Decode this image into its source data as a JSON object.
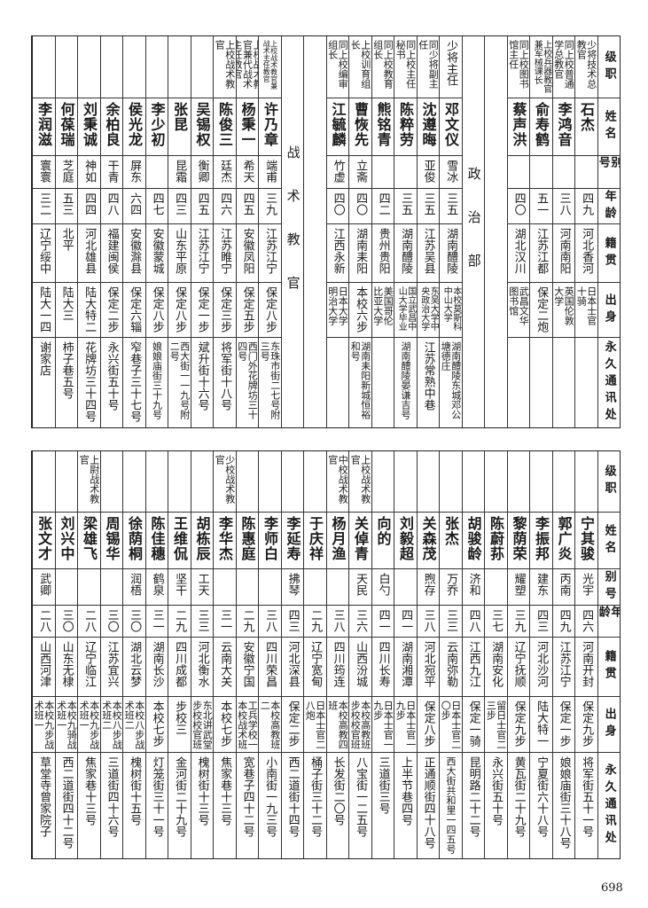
{
  "header_labels": [
    "级职",
    "姓名",
    "别号",
    "年龄",
    "籍贯",
    "出身",
    "永久通讯处"
  ],
  "top_table": {
    "columns": [
      {
        "type": "person",
        "title": "少将技术总教官",
        "name": "石杰",
        "alias": "",
        "age": "四九",
        "native": "河北香河",
        "education": "日本士官十骑",
        "address": ""
      },
      {
        "type": "person",
        "title": "同上校普通学总教官",
        "name": "李鸿音",
        "alias": "",
        "age": "三八",
        "native": "河南南阳",
        "education": "英国伦敦大学",
        "address": ""
      },
      {
        "type": "person",
        "title": "上校兵器教官兼军械课长",
        "name": "俞寿鹤",
        "alias": "",
        "age": "五一",
        "native": "江苏江都",
        "education": "保定二炮",
        "address": ""
      },
      {
        "type": "person",
        "title": "同上校图书馆主任",
        "name": "蔡声洪",
        "alias": "",
        "age": "四〇",
        "native": "湖北汉川",
        "education": "武昌文华图书馆",
        "address": ""
      },
      {
        "type": "blank"
      },
      {
        "type": "label",
        "text": "政治部"
      },
      {
        "type": "person",
        "title": "少将主任",
        "name": "邓文仪",
        "alias": "雪冰",
        "age": "三五",
        "native": "湖南醴陵",
        "education": "本校莫斯科中山大学",
        "address": "湖南醴陵东城邓公塘德庄"
      },
      {
        "type": "person",
        "title": "同少将副主任",
        "name": "沈遵晦",
        "alias": "亚俊",
        "age": "三五",
        "native": "江苏吴县",
        "education": "东吴大学中央政治大学",
        "address": "江苏常熟中巷"
      },
      {
        "type": "person",
        "title": "同上校主任秘书",
        "name": "陈粹劳",
        "alias": "",
        "age": "三五",
        "native": "湖南醴陵",
        "education": "国立武昌中山大学毕业",
        "address": "湖南醴陵晏谦吉号"
      },
      {
        "type": "person",
        "title": "同上校教育组长",
        "name": "熊铭青",
        "alias": "",
        "age": "四二",
        "native": "贵州贵阳",
        "education": "美国哥伦比亚大学",
        "address": ""
      },
      {
        "type": "person",
        "title": "上校训育组长",
        "name": "曹恢先",
        "alias": "立斋",
        "age": "四〇",
        "native": "湖南耒阳",
        "education": "本校六步",
        "address": "湖南耒阳新城恒裕和号"
      },
      {
        "type": "person",
        "title": "同上校编审组长",
        "name": "江毓麟",
        "alias": "竹虚",
        "age": "四〇",
        "native": "江西永新",
        "education": "日本大学明治大学",
        "address": ""
      },
      {
        "type": "blank"
      },
      {
        "type": "label",
        "text": "战术教官"
      },
      {
        "type": "person",
        "title": "上校战术教官兼战术主任教官",
        "name": "许乃章",
        "alias": "端甫",
        "age": "三九",
        "native": "江苏江宁",
        "education": "保定八步",
        "address": "东珠市街二七号附三号"
      },
      {
        "type": "person",
        "title": "上校战术教官兼代战术主任教官",
        "name": "杨秉一",
        "alias": "希天",
        "age": "四五",
        "native": "安徽凤阳",
        "education": "保定五步",
        "address": "西门外花牌坊三十四号"
      },
      {
        "type": "person",
        "title": "上校战术教官",
        "name": "陈俊三",
        "alias": "廷杰",
        "age": "四六",
        "native": "江苏睢宁",
        "education": "保定三步",
        "address": "将军街十八号"
      },
      {
        "type": "person",
        "title": "",
        "name": "吴锡权",
        "alias": "衡卿",
        "age": "四五",
        "native": "江苏江宁",
        "education": "保定一步",
        "address": "斌升街十六号"
      },
      {
        "type": "person",
        "title": "",
        "name": "张昆",
        "alias": "昆霜",
        "age": "四三",
        "native": "山东平原",
        "education": "保定八步",
        "address": "西大街一一九号附二号"
      },
      {
        "type": "person",
        "title": "",
        "name": "李少初",
        "alias": "",
        "age": "四七",
        "native": "安徽蒙城",
        "education": "保定八步",
        "address": "娘娘庙街三十九号"
      },
      {
        "type": "person",
        "title": "",
        "name": "侯光龙",
        "alias": "屏东",
        "age": "六四",
        "native": "安徽滁县",
        "education": "保定六辎",
        "address": "窄巷子三十七号"
      },
      {
        "type": "person",
        "title": "",
        "name": "余柏良",
        "alias": "干青",
        "age": "四八",
        "native": "福建闽侯",
        "education": "保定二步",
        "address": "永兴街五十号"
      },
      {
        "type": "person",
        "title": "",
        "name": "刘秉诚",
        "alias": "神如",
        "age": "四四",
        "native": "河北雄县",
        "education": "陆大特二",
        "address": "花牌坊三十四号"
      },
      {
        "type": "person",
        "title": "",
        "name": "何葆瑞",
        "alias": "芝庭",
        "age": "五三",
        "native": "北平",
        "education": "陆大三",
        "address": "柿子巷五号"
      },
      {
        "type": "person",
        "title": "",
        "name": "李润滋",
        "alias": "寰寰",
        "age": "三二",
        "native": "辽宁绥中",
        "education": "陆大一四",
        "address": "谢家店"
      }
    ]
  },
  "bottom_table": {
    "columns": [
      {
        "type": "person",
        "title": "",
        "name": "宁其骏",
        "alias": "光宇",
        "age": "四六",
        "native": "河南开封",
        "education": "保定九步",
        "address": "将军街五十一号"
      },
      {
        "type": "person",
        "title": "",
        "name": "郭广炎",
        "alias": "丙南",
        "age": "四九",
        "native": "江苏江宁",
        "education": "保定一步",
        "address": "娘娘庙街三十八号"
      },
      {
        "type": "person",
        "title": "",
        "name": "李振邦",
        "alias": "建东",
        "age": "四三",
        "native": "河北沙河",
        "education": "陆大特一",
        "address": "宁夏街六十八号"
      },
      {
        "type": "person",
        "title": "",
        "name": "黎荫荣",
        "alias": "耀塑",
        "age": "三九",
        "native": "辽宁抚顺",
        "education": "保定九步",
        "address": "黄瓦街二十九号"
      },
      {
        "type": "person",
        "title": "",
        "name": "陈蔚荪",
        "alias": "",
        "age": "三七",
        "native": "湖南安化",
        "education": "留日士官二三步",
        "address": "永兴街五十号"
      },
      {
        "type": "person",
        "title": "",
        "name": "胡骏龄",
        "alias": "济和",
        "age": "四八",
        "native": "江西九江",
        "education": "保定一骑",
        "address": "昆明路二十二号"
      },
      {
        "type": "person",
        "title": "",
        "name": "张杰",
        "alias": "万乔",
        "age": "三三",
        "native": "云南弥勒",
        "education": "日本士官二〇步",
        "address": "西大街共和里一四五号"
      },
      {
        "type": "person",
        "title": "",
        "name": "关森茂",
        "alias": "煦存",
        "age": "三八",
        "native": "河北宛平",
        "education": "保定八步",
        "address": "正通顺街四十八号"
      },
      {
        "type": "person",
        "title": "",
        "name": "刘毅超",
        "alias": "",
        "age": "四一",
        "native": "湖南湘潭",
        "education": "日本士官一九步",
        "address": "上半节巷四号"
      },
      {
        "type": "person",
        "title": "",
        "name": "向的",
        "alias": "白勺",
        "age": "四一",
        "native": "四川长寿",
        "education": "日本士官一九步",
        "address": "三道街三号"
      },
      {
        "type": "person",
        "title": "上校战术教官",
        "name": "关倬青",
        "alias": "天民",
        "age": "三六",
        "native": "山西汾城",
        "education": "本校高教班步校校官班",
        "address": "八宝街一二五号"
      },
      {
        "type": "person",
        "title": "中校战术教官",
        "name": "杨月渔",
        "alias": "",
        "age": "三八",
        "native": "四川筠连",
        "education": "本校高教四班",
        "address": "长发街二〇号"
      },
      {
        "type": "person",
        "title": "",
        "name": "于庆祥",
        "alias": "",
        "age": "二九",
        "native": "辽宁宽甸",
        "education": "日本士官二八炮",
        "address": "桶子街三十二号"
      },
      {
        "type": "person",
        "title": "",
        "name": "李延寿",
        "alias": "拂琴",
        "age": "四三",
        "native": "河北深县",
        "education": "保定二步",
        "address": "西二道街十四号"
      },
      {
        "type": "person",
        "title": "",
        "name": "李师白",
        "alias": "",
        "age": "三八",
        "native": "四川荣昌",
        "education": "本校高教班二",
        "address": "小南街一九三号"
      },
      {
        "type": "person",
        "title": "",
        "name": "陈惠庭",
        "alias": "",
        "age": "二九",
        "native": "安徽宁国",
        "education": "工兵学校一本校战术班",
        "address": "宽巷子四十二号"
      },
      {
        "type": "person",
        "title": "少校战术教官",
        "name": "李华杰",
        "alias": "",
        "age": "三一",
        "native": "云南大关",
        "education": "本校七步",
        "address": "焦家巷十三号"
      },
      {
        "type": "person",
        "title": "",
        "name": "胡栋辰",
        "alias": "工天",
        "age": "三三",
        "native": "河北衡水",
        "education": "东北讲武堂步校校官班",
        "address": "槐树街十三号"
      },
      {
        "type": "person",
        "title": "",
        "name": "王维侃",
        "alias": "坚干",
        "age": "二九",
        "native": "四川成都",
        "education": "步校三",
        "address": "金河街二十九号"
      },
      {
        "type": "person",
        "title": "",
        "name": "陈佳穗",
        "alias": "鹤泉",
        "age": "三一",
        "native": "湖南长沙",
        "education": "本校七步",
        "address": "灯笼街三十一号"
      },
      {
        "type": "person",
        "title": "",
        "name": "徐荫桐",
        "alias": "润梧",
        "age": "三〇",
        "native": "湖北云梦",
        "education": "本校八步战术班二",
        "address": "槐树街十五号"
      },
      {
        "type": "person",
        "title": "",
        "name": "周锡华",
        "alias": "",
        "age": "三〇",
        "native": "江苏宜兴",
        "education": "本校八步战术班二",
        "address": "三道街四十六号"
      },
      {
        "type": "person",
        "title": "上尉战术教官",
        "name": "梁雄飞",
        "alias": "",
        "age": "二八",
        "native": "辽宁临江",
        "education": "本校九步战术班一",
        "address": "焦家巷十三号"
      },
      {
        "type": "person",
        "title": "",
        "name": "刘兴中",
        "alias": "",
        "age": "三〇",
        "native": "山东无棣",
        "education": "本校九骑战术班一",
        "address": "西二道街四十二号"
      },
      {
        "type": "person",
        "title": "",
        "name": "张文才",
        "alias": "武卿",
        "age": "二八",
        "native": "山西河津",
        "education": "本校九步战术班一",
        "address": "草堂寺曾家院子"
      }
    ]
  },
  "page_number": "698"
}
